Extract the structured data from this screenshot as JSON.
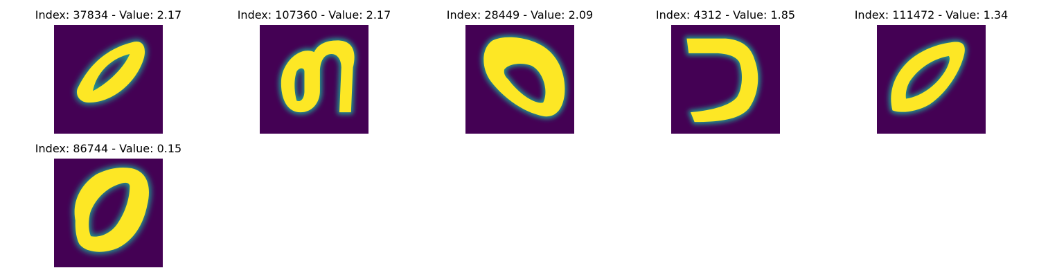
{
  "colormap": {
    "name": "viridis",
    "background": "#440154",
    "stroke": "#fde725",
    "edge": "#21918c"
  },
  "panels": [
    {
      "title": "Index: 37834 - Value: 2.17",
      "digit_shape": "tilted-zero-thin"
    },
    {
      "title": "Index: 107360 - Value: 2.17",
      "digit_shape": "n-loop"
    },
    {
      "title": "Index: 28449 - Value: 2.09",
      "digit_shape": "tilted-zero-thick-top"
    },
    {
      "title": "Index: 4312 - Value: 1.85",
      "digit_shape": "reversed-c"
    },
    {
      "title": "Index: 111472 - Value: 1.34",
      "digit_shape": "diagonal-zero"
    },
    {
      "title": "Index: 86744 - Value: 0.15",
      "digit_shape": "upright-zero"
    }
  ]
}
